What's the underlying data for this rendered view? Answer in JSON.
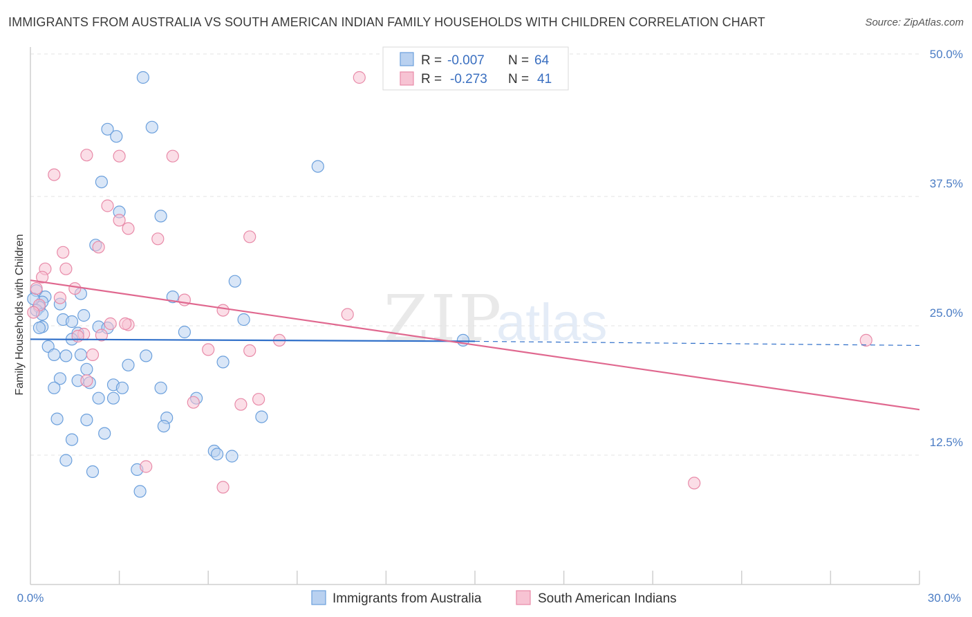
{
  "chart_data": {
    "type": "scatter",
    "title": "IMMIGRANTS FROM AUSTRALIA VS SOUTH AMERICAN INDIAN FAMILY HOUSEHOLDS WITH CHILDREN CORRELATION CHART",
    "source": "Source: ZipAtlas.com",
    "ylabel": "Family Households with Children",
    "xlim": [
      0,
      30
    ],
    "ylim": [
      0,
      50
    ],
    "x_tick_labels": {
      "min": "0.0%",
      "max": "30.0%"
    },
    "y_ticks": [
      {
        "value": 12.5,
        "label": "12.5%"
      },
      {
        "value": 25.0,
        "label": "25.0%"
      },
      {
        "value": 37.5,
        "label": "37.5%"
      },
      {
        "value": 50.0,
        "label": "50.0%"
      }
    ],
    "legend": {
      "r_label": "R =",
      "n_label": "N =",
      "rows": [
        {
          "r": "-0.007",
          "n": "64"
        },
        {
          "r": "-0.273",
          "n": "41"
        }
      ]
    },
    "series": [
      {
        "name": "Immigrants from Australia",
        "color": "#6a9fdc",
        "fill": "#b9d1f0",
        "line_color": "#2f6fc9",
        "trend": {
          "x0": 0,
          "y0": 23.7,
          "x1": 15,
          "y1": 23.5,
          "dash_to_x": 30,
          "dash_to_y": 23.1
        },
        "points": [
          [
            3.8,
            49
          ],
          [
            2.6,
            44
          ],
          [
            4.1,
            44.2
          ],
          [
            2.9,
            43.3
          ],
          [
            9.7,
            40.4
          ],
          [
            2.4,
            38.9
          ],
          [
            3.0,
            36.0
          ],
          [
            4.4,
            35.6
          ],
          [
            2.2,
            32.8
          ],
          [
            6.9,
            29.3
          ],
          [
            0.2,
            28.4
          ],
          [
            1.7,
            28.1
          ],
          [
            4.8,
            27.8
          ],
          [
            0.5,
            27.8
          ],
          [
            0.4,
            27.3
          ],
          [
            1.0,
            27.1
          ],
          [
            0.3,
            26.8
          ],
          [
            0.2,
            26.5
          ],
          [
            0.4,
            26.1
          ],
          [
            1.8,
            26.0
          ],
          [
            1.1,
            25.6
          ],
          [
            1.4,
            25.4
          ],
          [
            7.2,
            25.6
          ],
          [
            0.4,
            24.9
          ],
          [
            0.3,
            24.8
          ],
          [
            2.3,
            24.9
          ],
          [
            2.6,
            24.8
          ],
          [
            5.2,
            24.4
          ],
          [
            1.6,
            24.3
          ],
          [
            1.4,
            23.7
          ],
          [
            0.6,
            23.0
          ],
          [
            0.8,
            22.2
          ],
          [
            1.2,
            22.1
          ],
          [
            1.7,
            22.2
          ],
          [
            3.9,
            22.1
          ],
          [
            6.5,
            21.5
          ],
          [
            3.3,
            21.2
          ],
          [
            1.9,
            20.8
          ],
          [
            1.0,
            19.9
          ],
          [
            1.6,
            19.7
          ],
          [
            2.0,
            19.5
          ],
          [
            2.8,
            19.3
          ],
          [
            3.1,
            19.0
          ],
          [
            4.4,
            19.0
          ],
          [
            0.8,
            19.0
          ],
          [
            2.3,
            18.0
          ],
          [
            2.8,
            18.0
          ],
          [
            5.6,
            18.0
          ],
          [
            7.8,
            16.2
          ],
          [
            4.6,
            16.1
          ],
          [
            0.9,
            16.0
          ],
          [
            1.9,
            15.9
          ],
          [
            4.5,
            15.3
          ],
          [
            2.5,
            14.6
          ],
          [
            1.4,
            14.0
          ],
          [
            6.2,
            12.9
          ],
          [
            6.3,
            12.6
          ],
          [
            6.8,
            12.4
          ],
          [
            1.2,
            12.0
          ],
          [
            2.1,
            10.9
          ],
          [
            3.6,
            11.1
          ],
          [
            3.7,
            9.0
          ],
          [
            14.6,
            23.6
          ],
          [
            0.1,
            27.6
          ]
        ]
      },
      {
        "name": "South American Indians",
        "color": "#e88aa8",
        "fill": "#f7c3d3",
        "line_color": "#e0688f",
        "trend": {
          "x0": 0,
          "y0": 29.4,
          "x1": 30,
          "y1": 16.9
        },
        "points": [
          [
            11.1,
            49
          ],
          [
            1.9,
            41.5
          ],
          [
            3.0,
            41.4
          ],
          [
            4.8,
            41.4
          ],
          [
            0.8,
            39.6
          ],
          [
            2.6,
            36.6
          ],
          [
            3.0,
            35.2
          ],
          [
            3.3,
            34.4
          ],
          [
            4.3,
            33.4
          ],
          [
            7.4,
            33.6
          ],
          [
            2.3,
            32.6
          ],
          [
            1.1,
            32.1
          ],
          [
            1.2,
            30.5
          ],
          [
            0.5,
            30.5
          ],
          [
            0.4,
            29.7
          ],
          [
            0.2,
            28.6
          ],
          [
            1.5,
            28.6
          ],
          [
            1.0,
            27.7
          ],
          [
            5.2,
            27.5
          ],
          [
            0.3,
            27.0
          ],
          [
            0.1,
            26.3
          ],
          [
            6.5,
            26.5
          ],
          [
            10.7,
            26.1
          ],
          [
            2.7,
            25.2
          ],
          [
            3.3,
            25.1
          ],
          [
            1.8,
            24.2
          ],
          [
            2.4,
            24.1
          ],
          [
            1.6,
            24.0
          ],
          [
            8.4,
            23.6
          ],
          [
            6.0,
            22.7
          ],
          [
            7.4,
            22.6
          ],
          [
            2.1,
            22.2
          ],
          [
            1.9,
            19.7
          ],
          [
            5.5,
            17.6
          ],
          [
            7.1,
            17.4
          ],
          [
            7.7,
            17.9
          ],
          [
            3.9,
            11.4
          ],
          [
            6.5,
            9.4
          ],
          [
            22.4,
            9.8
          ],
          [
            28.2,
            23.6
          ],
          [
            3.2,
            25.2
          ]
        ]
      }
    ]
  }
}
